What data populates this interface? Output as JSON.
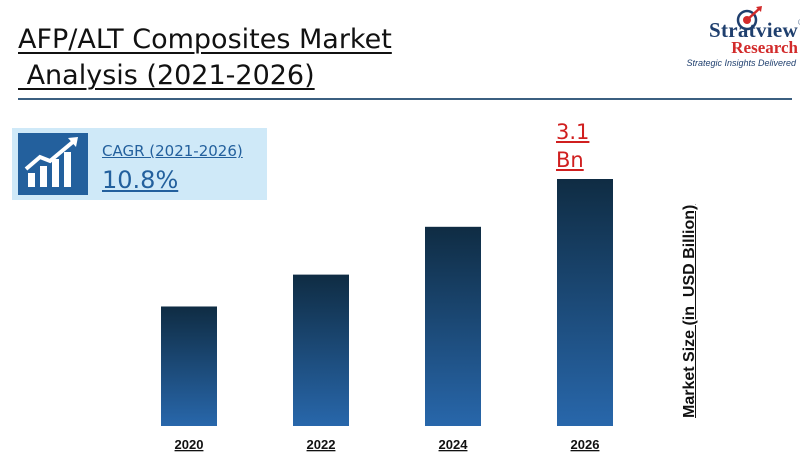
{
  "header": {
    "title_line1": "AFP/ALT Composites Market",
    "title_line2": " Analysis (2021-2026)"
  },
  "logo": {
    "brand": "Stratview",
    "registered": "®",
    "sub": "Research",
    "tagline": "Strategic Insights Delivered"
  },
  "cagr": {
    "label": "CAGR (2021-2026)",
    "value": "10.8%",
    "icon": "growth-chart-icon"
  },
  "colors": {
    "bar_top": "#0f2c43",
    "bar_bottom": "#2867ab",
    "accent_red": "#d01f1f",
    "cagr_bg": "#cfe9f8",
    "rule": "#3b5f80"
  },
  "chart_data": {
    "type": "bar",
    "categories": [
      "2020",
      "2022",
      "2024",
      "2026"
    ],
    "values": [
      1.5,
      1.9,
      2.5,
      3.1
    ],
    "ylabel": "Market Size (in  USD Billion)",
    "ylim": [
      0,
      3.1
    ],
    "grid": false,
    "annotations": [
      {
        "category": "2026",
        "line1": "3.1",
        "line2": "Bn"
      }
    ]
  }
}
